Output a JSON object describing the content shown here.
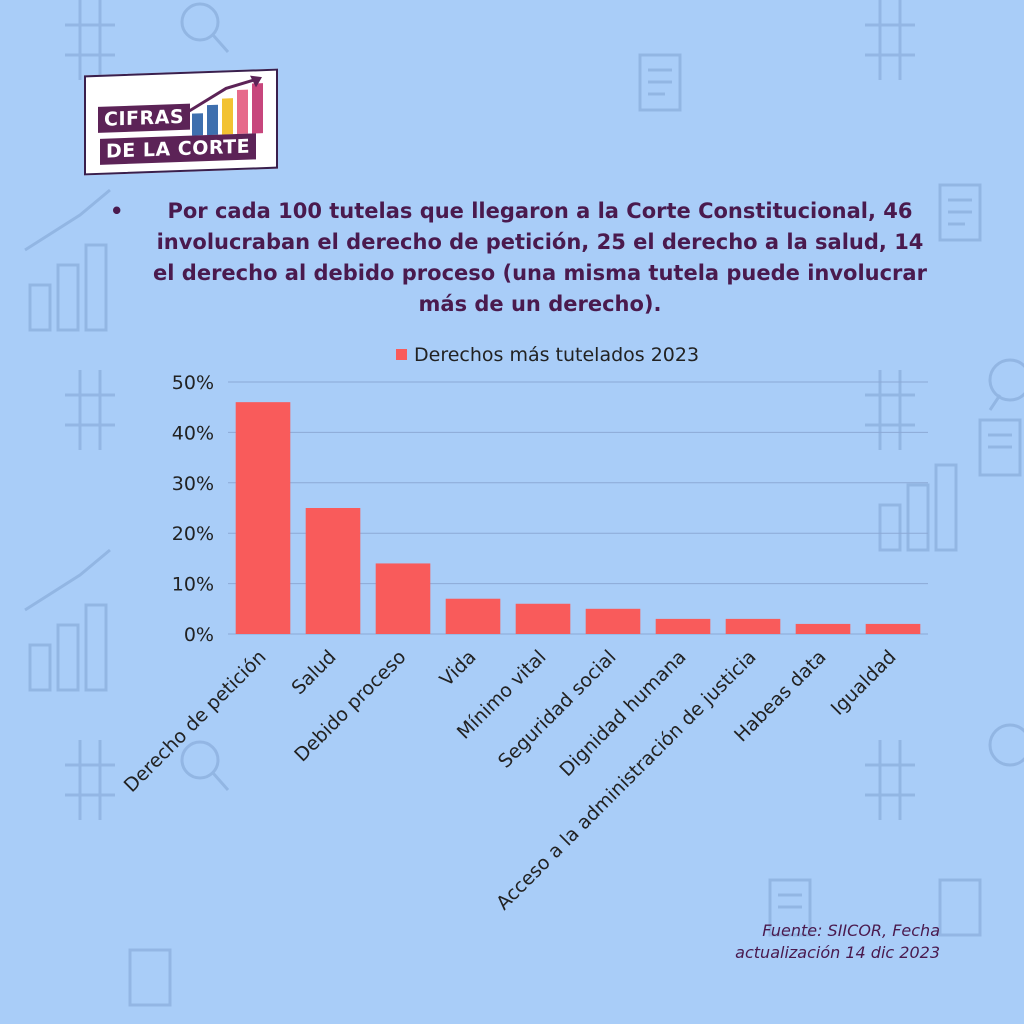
{
  "brand": {
    "logo_line1": "CIFRAS",
    "logo_line2": "DE LA CORTE"
  },
  "headline": {
    "bullet": "•",
    "text": "Por cada 100 tutelas que llegaron a la Corte Constitucional, 46 involucraban el derecho de petición, 25 el derecho a la salud, 14 el derecho al debido proceso (una misma tutela puede involucrar más de un derecho)."
  },
  "source": {
    "line1": "Fuente: SIICOR, Fecha",
    "line2": "actualización 14 dic 2023"
  },
  "colors": {
    "background": "#a9cdf8",
    "bar": "#f95b5b",
    "text_dark": "#4a1a4e",
    "axis_text": "#222222",
    "grid": "#8ca9d6"
  },
  "chart_data": {
    "type": "bar",
    "title": "",
    "xlabel": "",
    "ylabel": "",
    "legend_position": "top-center",
    "grid": true,
    "ylim": [
      0,
      50
    ],
    "yticks": [
      {
        "value": 0,
        "label": "0%"
      },
      {
        "value": 10,
        "label": "10%"
      },
      {
        "value": 20,
        "label": "20%"
      },
      {
        "value": 30,
        "label": "30%"
      },
      {
        "value": 40,
        "label": "40%"
      },
      {
        "value": 50,
        "label": "50%"
      }
    ],
    "categories": [
      "Derecho de petición",
      "Salud",
      "Debido proceso",
      "Vida",
      "Mínimo vital",
      "Seguridad social",
      "Dignidad humana",
      "Acceso a la administración de justicia",
      "Habeas data",
      "Igualdad"
    ],
    "series": [
      {
        "name": "Derechos más tutelados 2023",
        "values": [
          46,
          25,
          14,
          7,
          6,
          5,
          3,
          3,
          2,
          2
        ]
      }
    ]
  }
}
